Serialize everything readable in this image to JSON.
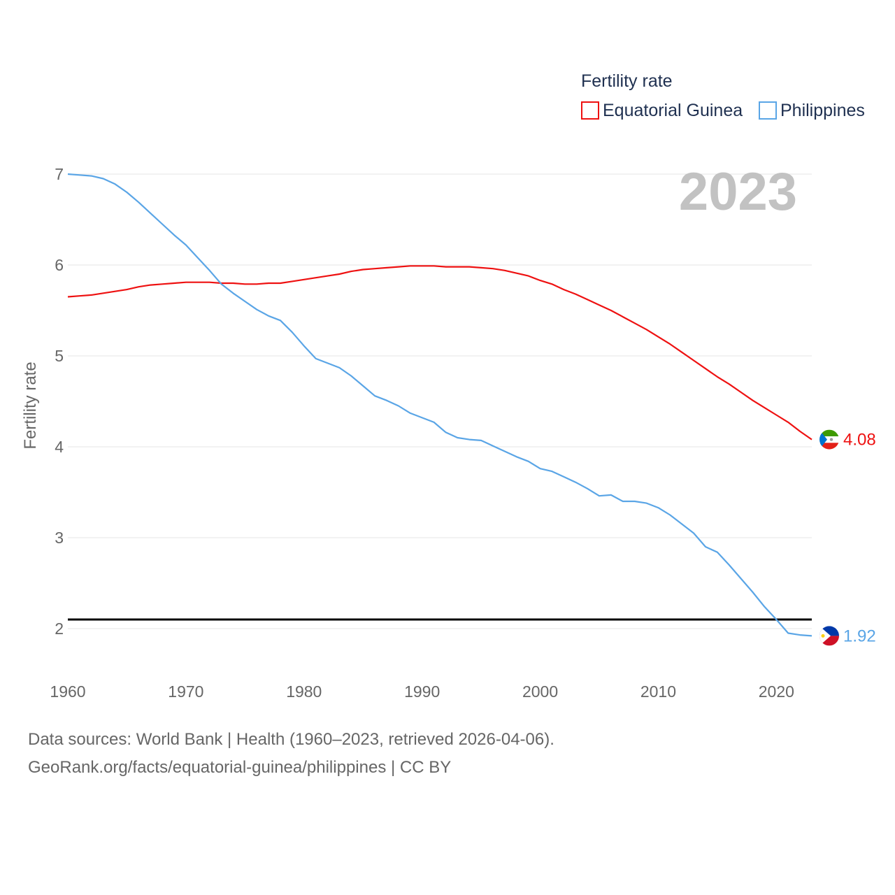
{
  "chart_data": {
    "type": "line",
    "ylabel": "Fertility rate",
    "xlabel": "",
    "year_label": "2023",
    "legend": {
      "title": "Fertility rate",
      "placement": "top-right"
    },
    "xlim": [
      1960,
      2023
    ],
    "ylim": [
      1.6,
      7.2
    ],
    "x_ticks": [
      1960,
      1970,
      1980,
      1990,
      2000,
      2010,
      2020
    ],
    "y_ticks": [
      2,
      3,
      4,
      5,
      6,
      7
    ],
    "reference_line": {
      "value": 2.1,
      "color": "#000000"
    },
    "x": [
      1960,
      1961,
      1962,
      1963,
      1964,
      1965,
      1966,
      1967,
      1968,
      1969,
      1970,
      1971,
      1972,
      1973,
      1974,
      1975,
      1976,
      1977,
      1978,
      1979,
      1980,
      1981,
      1982,
      1983,
      1984,
      1985,
      1986,
      1987,
      1988,
      1989,
      1990,
      1991,
      1992,
      1993,
      1994,
      1995,
      1996,
      1997,
      1998,
      1999,
      2000,
      2001,
      2002,
      2003,
      2004,
      2005,
      2006,
      2007,
      2008,
      2009,
      2010,
      2011,
      2012,
      2013,
      2014,
      2015,
      2016,
      2017,
      2018,
      2019,
      2020,
      2021,
      2022,
      2023
    ],
    "series": [
      {
        "name": "Equatorial Guinea",
        "color": "#ee1111",
        "end_label": "4.08",
        "flag": "equatorial-guinea-flag-icon",
        "values": [
          5.65,
          5.66,
          5.67,
          5.69,
          5.71,
          5.73,
          5.76,
          5.78,
          5.79,
          5.8,
          5.81,
          5.81,
          5.81,
          5.8,
          5.8,
          5.79,
          5.79,
          5.8,
          5.8,
          5.82,
          5.84,
          5.86,
          5.88,
          5.9,
          5.93,
          5.95,
          5.96,
          5.97,
          5.98,
          5.99,
          5.99,
          5.99,
          5.98,
          5.98,
          5.98,
          5.97,
          5.96,
          5.94,
          5.91,
          5.88,
          5.83,
          5.79,
          5.73,
          5.68,
          5.62,
          5.56,
          5.5,
          5.43,
          5.36,
          5.29,
          5.21,
          5.13,
          5.04,
          4.95,
          4.86,
          4.77,
          4.69,
          4.6,
          4.51,
          4.43,
          4.35,
          4.27,
          4.17,
          4.08
        ]
      },
      {
        "name": "Philippines",
        "color": "#5aa5e6",
        "end_label": "1.92",
        "flag": "philippines-flag-icon",
        "values": [
          7.0,
          6.99,
          6.98,
          6.95,
          6.89,
          6.8,
          6.69,
          6.57,
          6.45,
          6.33,
          6.22,
          6.08,
          5.94,
          5.79,
          5.69,
          5.6,
          5.51,
          5.44,
          5.39,
          5.26,
          5.11,
          4.97,
          4.92,
          4.87,
          4.78,
          4.67,
          4.56,
          4.51,
          4.45,
          4.37,
          4.32,
          4.27,
          4.16,
          4.1,
          4.08,
          4.07,
          4.01,
          3.95,
          3.89,
          3.84,
          3.76,
          3.73,
          3.67,
          3.61,
          3.54,
          3.46,
          3.47,
          3.4,
          3.4,
          3.38,
          3.33,
          3.25,
          3.15,
          3.05,
          2.9,
          2.84,
          2.7,
          2.55,
          2.4,
          2.24,
          2.1,
          1.95,
          1.93,
          1.92
        ]
      }
    ]
  },
  "footer": {
    "line1": "Data sources: World Bank | Health (1960–2023, retrieved 2026-04-06).",
    "line2": "GeoRank.org/facts/equatorial-guinea/philippines | CC BY"
  }
}
